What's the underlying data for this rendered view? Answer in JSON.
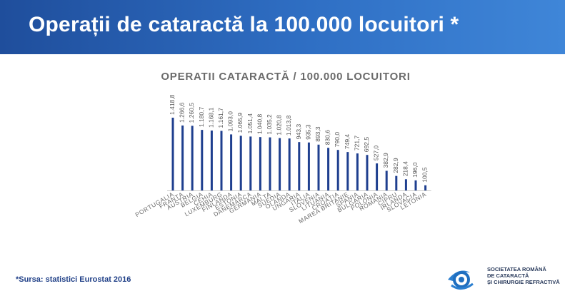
{
  "header": {
    "title": "Operații de cataractă la 100.000 locuitori *"
  },
  "chart_data": {
    "type": "bar",
    "title": "OPERATII CATARACTĂ / 100.000 LOCUITORI",
    "categories": [
      "PORTUGALIA",
      "FRANȚA",
      "AUSTRIA",
      "BELGIA",
      "CEHIA",
      "LUXEMBURG",
      "FINLANDA",
      "ESTONIA",
      "DANEMARCA",
      "GERMANIA",
      "MALTA",
      "SUEDIA",
      "OLANDA",
      "UNGARIA",
      "ITALIA",
      "SLOVENIA",
      "LITUANIA",
      "CROAȚIA",
      "MAREA BRITANIE",
      "SPANIA",
      "BULGARIA",
      "POLONIA",
      "ROMANIA",
      "CIPRU",
      "IRLANDA",
      "SLOVACIA",
      "LETONIA"
    ],
    "values": [
      1418.8,
      1266.6,
      1260.5,
      1180.7,
      1168.1,
      1161.7,
      1093.0,
      1065.9,
      1051.4,
      1040.8,
      1035.2,
      1020.8,
      1013.8,
      943.3,
      935.3,
      893.3,
      830.6,
      790.0,
      749.4,
      721.7,
      692.5,
      527.0,
      382.9,
      282.9,
      218.4,
      196.0,
      100.5
    ],
    "value_labels": [
      "1.418,8",
      "1.266,6",
      "1.260,5",
      "1.180,7",
      "1.168,1",
      "1.161,7",
      "1.093,0",
      "1.065,9",
      "1.051,4",
      "1.040,8",
      "1.035,2",
      "1.020,8",
      "1.013,8",
      "943,3",
      "935,3",
      "893,3",
      "830,6",
      "790,0",
      "749,4",
      "721,7",
      "692,5",
      "527,0",
      "382,9",
      "282,9",
      "218,4",
      "196,0",
      "100,5"
    ],
    "ylim": [
      0,
      1418.8
    ],
    "bar_color": "#1f3f8f",
    "grid": false,
    "legend": "none"
  },
  "footnote": "*Sursa: statistici Eurostat 2016",
  "logo": {
    "icon": "eye-logo-icon",
    "lines": [
      "SOCIETATEA ROMÂNĂ",
      "DE CATARACTĂ",
      "ȘI CHIRURGIE REFRACTIVĂ"
    ]
  }
}
